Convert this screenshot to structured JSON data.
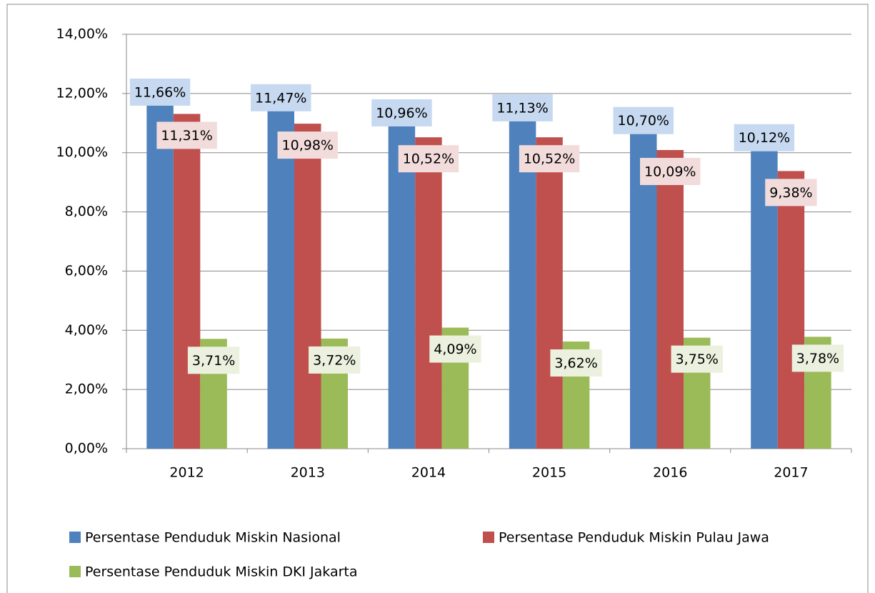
{
  "chart_data": {
    "type": "bar",
    "categories": [
      "2012",
      "2013",
      "2014",
      "2015",
      "2016",
      "2017"
    ],
    "series": [
      {
        "name": "Persentase Penduduk Miskin Nasional",
        "color": "#4f81bd",
        "label_bg": "#c6d9f1",
        "values": [
          11.66,
          11.47,
          10.96,
          11.13,
          10.7,
          10.12
        ],
        "value_labels": [
          "11,66%",
          "11,47%",
          "10,96%",
          "11,13%",
          "10,70%",
          "10,12%"
        ]
      },
      {
        "name": "Persentase Penduduk Miskin Pulau Jawa",
        "color": "#c0504d",
        "label_bg": "#f2dcdb",
        "values": [
          11.31,
          10.98,
          10.52,
          10.52,
          10.09,
          9.38
        ],
        "value_labels": [
          "11,31%",
          "10,98%",
          "10,52%",
          "10,52%",
          "10,09%",
          "9,38%"
        ]
      },
      {
        "name": "Persentase Penduduk Miskin DKI Jakarta",
        "color": "#9bbb59",
        "label_bg": "#ebf1de",
        "values": [
          3.71,
          3.72,
          4.09,
          3.62,
          3.75,
          3.78
        ],
        "value_labels": [
          "3,71%",
          "3,72%",
          "4,09%",
          "3,62%",
          "3,75%",
          "3,78%"
        ]
      }
    ],
    "ylim": [
      0,
      14
    ],
    "yticks": [
      {
        "value": 0,
        "label": "0,00%"
      },
      {
        "value": 2,
        "label": "2,00%"
      },
      {
        "value": 4,
        "label": "4,00%"
      },
      {
        "value": 6,
        "label": "6,00%"
      },
      {
        "value": 8,
        "label": "8,00%"
      },
      {
        "value": 10,
        "label": "10,00%"
      },
      {
        "value": 12,
        "label": "12,00%"
      },
      {
        "value": 14,
        "label": "14,00%"
      }
    ],
    "grid": true,
    "legend": "bottom"
  }
}
